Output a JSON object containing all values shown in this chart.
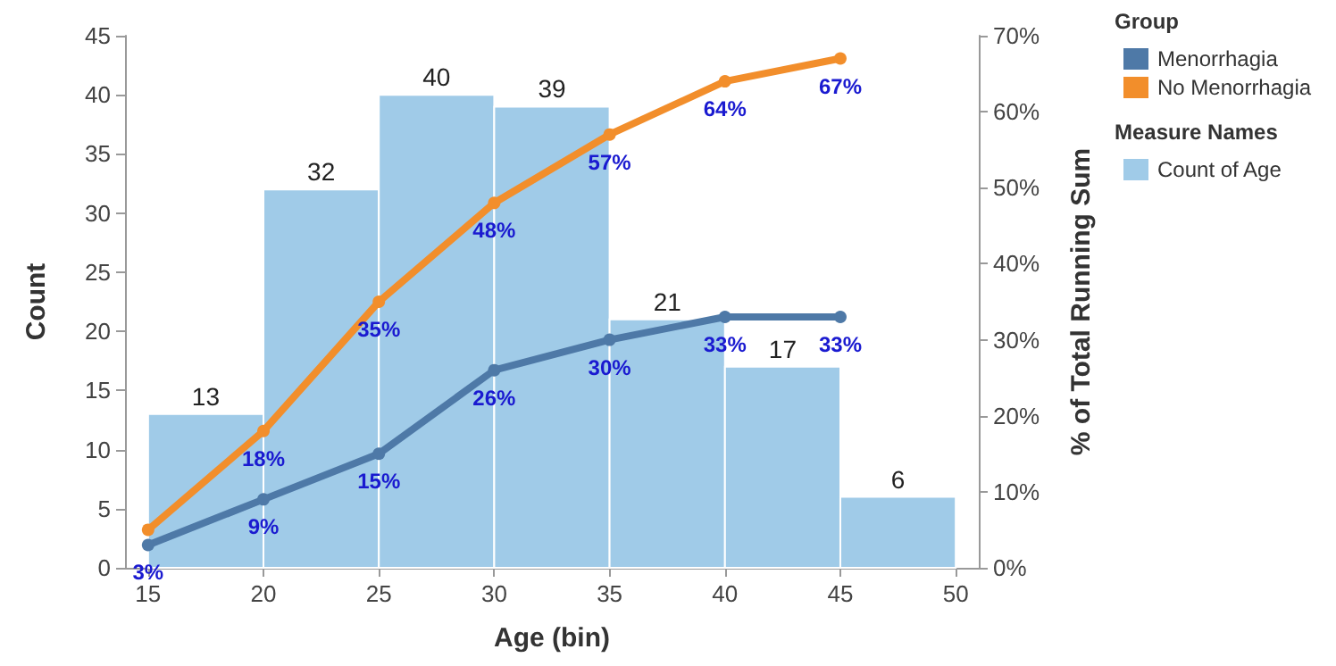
{
  "chart_data": {
    "type": "histogram",
    "xlabel": "Age (bin)",
    "ylabel": "Count",
    "y2label": "% of Total Running Sum",
    "legend_title": "Group",
    "annotations": [
      "Measure Names"
    ],
    "xlim": [
      14,
      51
    ],
    "xticks": [
      15,
      20,
      25,
      30,
      35,
      40,
      45,
      50
    ],
    "ylim": [
      0,
      45
    ],
    "yticks": [
      0,
      5,
      10,
      15,
      20,
      25,
      30,
      35,
      40,
      45
    ],
    "y2lim": [
      0,
      70
    ],
    "y2ticks": [
      {
        "value": 0,
        "label": "0%"
      },
      {
        "value": 10,
        "label": "10%"
      },
      {
        "value": 20,
        "label": "20%"
      },
      {
        "value": 30,
        "label": "30%"
      },
      {
        "value": 40,
        "label": "40%"
      },
      {
        "value": 50,
        "label": "50%"
      },
      {
        "value": 60,
        "label": "60%"
      },
      {
        "value": 70,
        "label": "70%"
      }
    ],
    "grid": false,
    "legend": "right",
    "marker": "circle",
    "data_labels": true,
    "series": [
      {
        "name": "Count of Age",
        "color": "#a0cbe8",
        "bins": [
          15,
          20,
          25,
          30,
          35,
          40,
          45,
          50
        ],
        "values": [
          13,
          32,
          40,
          39,
          21,
          17,
          6
        ]
      },
      {
        "type": "line",
        "name": "Menorrhagia",
        "color": "#4e79a7",
        "axis": "y2",
        "x": [
          15,
          20,
          25,
          30,
          35,
          40,
          45
        ],
        "values": [
          3,
          9,
          15,
          26,
          30,
          33,
          33
        ],
        "value_labels": [
          "3%",
          "9%",
          "15%",
          "26%",
          "30%",
          "33%",
          "33%"
        ]
      },
      {
        "type": "line",
        "name": "No Menorrhagia",
        "color": "#f28e2b",
        "axis": "y2",
        "x": [
          15,
          20,
          25,
          30,
          35,
          40,
          45
        ],
        "values": [
          5,
          18,
          35,
          48,
          57,
          64,
          67
        ],
        "value_labels": [
          null,
          "18%",
          "35%",
          "48%",
          "57%",
          "64%",
          "67%"
        ]
      }
    ]
  }
}
